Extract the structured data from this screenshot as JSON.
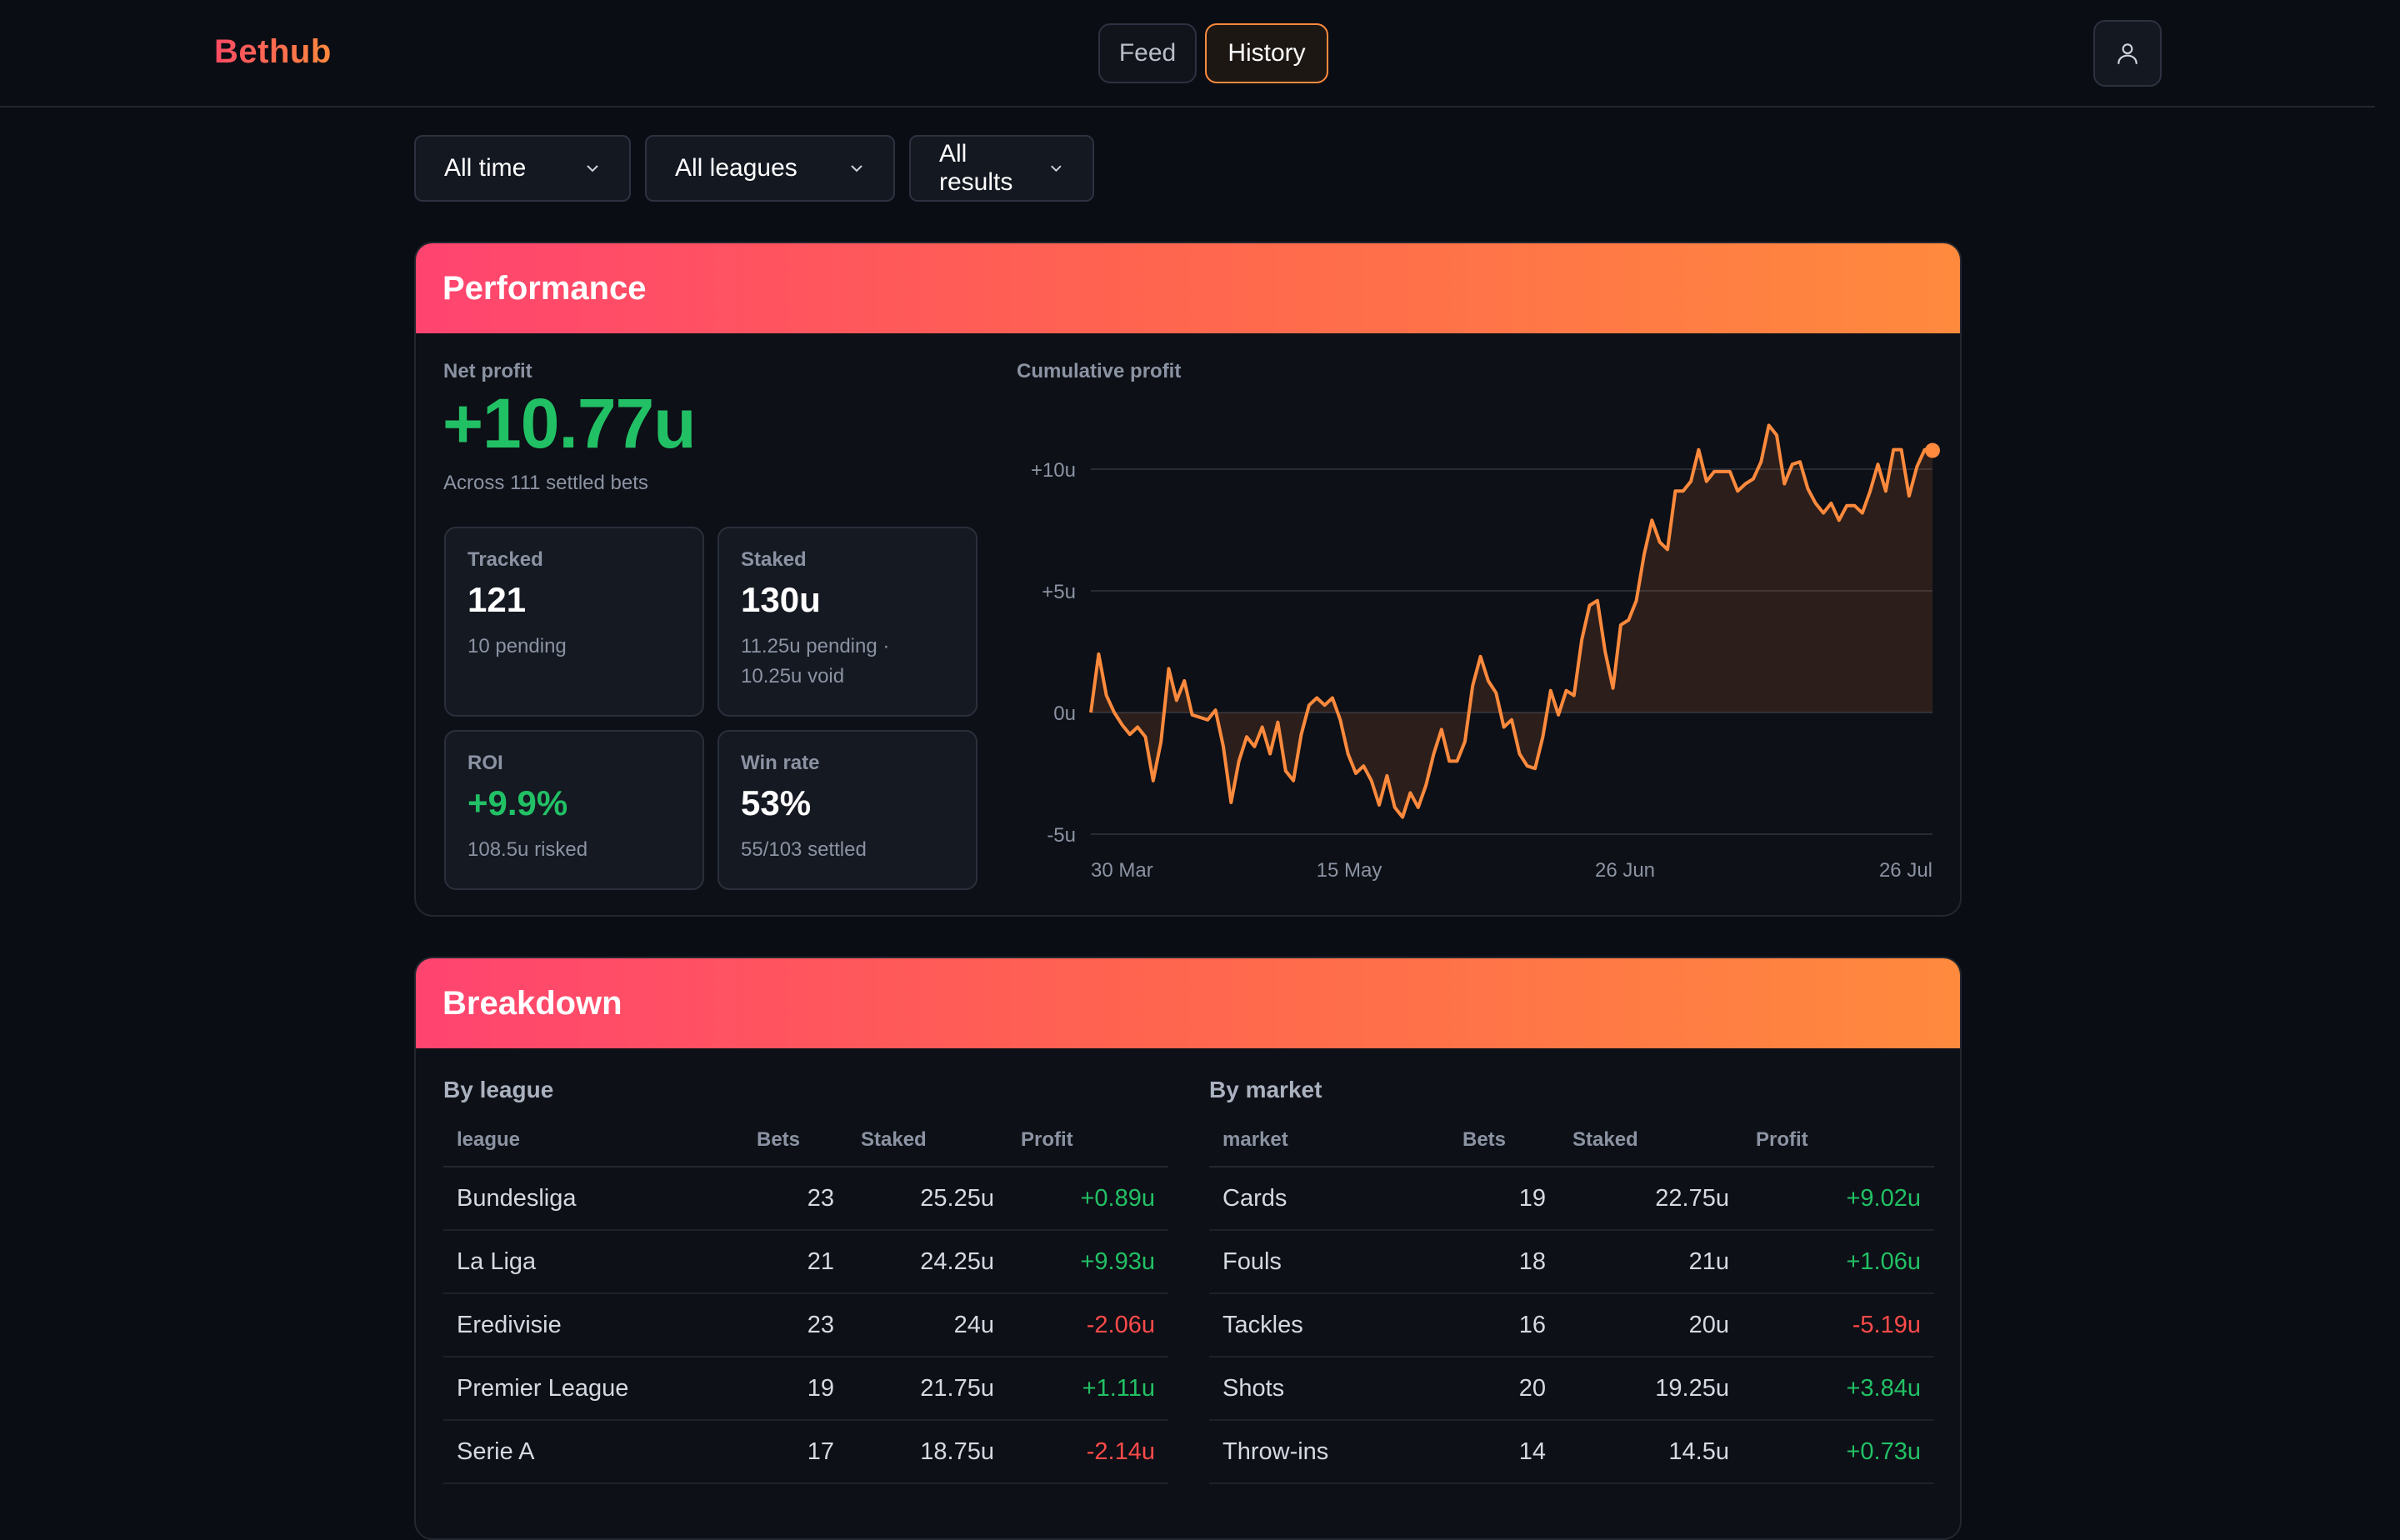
{
  "brand": {
    "name": "Bethub"
  },
  "nav": {
    "feed": "Feed",
    "history": "History"
  },
  "filters": {
    "time": "All time",
    "league": "All leagues",
    "result": "All results"
  },
  "performance": {
    "title": "Performance",
    "net_profit_label": "Net profit",
    "net_profit_value": "+10.77u",
    "net_profit_sub": "Across 111 settled bets",
    "stats": {
      "tracked": {
        "label": "Tracked",
        "value": "121",
        "sub": "10 pending"
      },
      "staked": {
        "label": "Staked",
        "value": "130u",
        "sub1": "11.25u pending ·",
        "sub2": "10.25u void"
      },
      "roi": {
        "label": "ROI",
        "value": "+9.9%",
        "sub": "108.5u risked"
      },
      "winrate": {
        "label": "Win rate",
        "value": "53%",
        "sub": "55/103 settled"
      }
    },
    "chart_label": "Cumulative profit"
  },
  "chart_data": {
    "type": "area",
    "title": "Cumulative profit",
    "xlabel": "",
    "ylabel": "",
    "y_ticks": [
      "+10u",
      "+5u",
      "0u",
      "-5u"
    ],
    "x_ticks": [
      "30 Mar",
      "15 May",
      "26 Jun",
      "26 Jul"
    ],
    "ylim": [
      -5,
      12
    ],
    "grid": true,
    "color": "#ff8a3d",
    "series": [
      {
        "values": [
          0,
          2.4,
          0.7,
          0,
          -0.5,
          -0.9,
          -0.6,
          -1,
          -2.8,
          -1.2,
          1.8,
          0.5,
          1.3,
          -0.1,
          -0.2,
          -0.3,
          0.1,
          -1.4,
          -3.7,
          -2,
          -1,
          -1.4,
          -0.6,
          -1.7,
          -0.4,
          -2.4,
          -2.8,
          -0.9,
          0.3,
          0.6,
          0.3,
          0.6,
          -0.3,
          -1.7,
          -2.5,
          -2.2,
          -2.8,
          -3.8,
          -2.6,
          -3.9,
          -4.3,
          -3.3,
          -3.9,
          -3,
          -1.7,
          -0.7,
          -2,
          -2,
          -1.2,
          1.1,
          2.3,
          1.3,
          0.8,
          -0.6,
          -0.3,
          -1.7,
          -2.2,
          -2.3,
          -1,
          0.9,
          -0.1,
          0.9,
          0.7,
          3,
          4.4,
          4.6,
          2.5,
          1,
          3.6,
          3.8,
          4.6,
          6.5,
          7.9,
          7,
          6.7,
          9.1,
          9.1,
          9.5,
          10.8,
          9.5,
          9.9,
          9.9,
          9.9,
          9.1,
          9.4,
          9.6,
          10.3,
          11.8,
          11.4,
          9.4,
          10.2,
          10.3,
          9.2,
          8.6,
          8.2,
          8.6,
          7.9,
          8.5,
          8.5,
          8.2,
          9.1,
          10.2,
          9.1,
          10.8,
          10.8,
          8.9,
          10.1,
          10.8,
          10.77
        ]
      }
    ]
  },
  "breakdown": {
    "title": "Breakdown",
    "by_league": {
      "title": "By league",
      "headers": [
        "league",
        "Bets",
        "Staked",
        "Profit"
      ],
      "rows": [
        [
          "Bundesliga",
          "23",
          "25.25u",
          "+0.89u"
        ],
        [
          "La Liga",
          "21",
          "24.25u",
          "+9.93u"
        ],
        [
          "Eredivisie",
          "23",
          "24u",
          "-2.06u"
        ],
        [
          "Premier League",
          "19",
          "21.75u",
          "+1.11u"
        ],
        [
          "Serie A",
          "17",
          "18.75u",
          "-2.14u"
        ]
      ]
    },
    "by_market": {
      "title": "By market",
      "headers": [
        "market",
        "Bets",
        "Staked",
        "Profit"
      ],
      "rows": [
        [
          "Cards",
          "19",
          "22.75u",
          "+9.02u"
        ],
        [
          "Fouls",
          "18",
          "21u",
          "+1.06u"
        ],
        [
          "Tackles",
          "16",
          "20u",
          "-5.19u"
        ],
        [
          "Shots",
          "20",
          "19.25u",
          "+3.84u"
        ],
        [
          "Throw-ins",
          "14",
          "14.5u",
          "+0.73u"
        ]
      ]
    }
  }
}
